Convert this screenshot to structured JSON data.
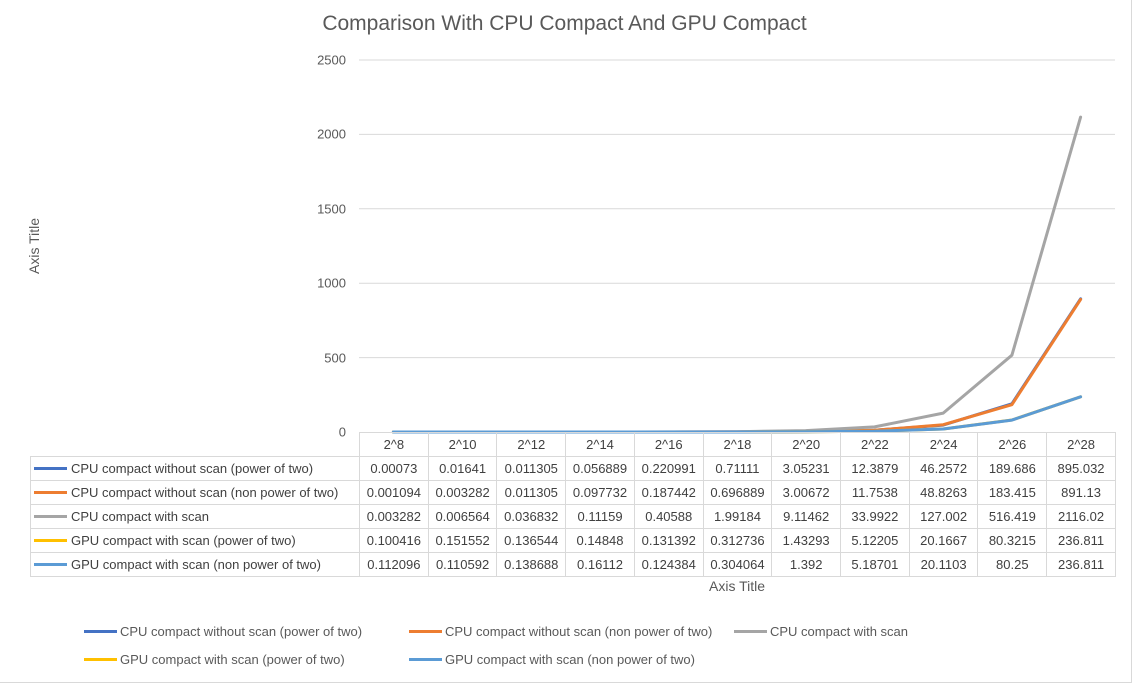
{
  "chart_data": {
    "type": "line",
    "title": "Comparison With CPU Compact And GPU Compact",
    "xlabel": "Axis Title",
    "ylabel": "Axis Title",
    "ylim": [
      0,
      2500
    ],
    "yticks": [
      "0",
      "500",
      "1000",
      "1500",
      "2000",
      "2500"
    ],
    "grid": true,
    "legend_position": "bottom",
    "data_table": true,
    "categories": [
      "2^8",
      "2^10",
      "2^12",
      "2^14",
      "2^16",
      "2^18",
      "2^20",
      "2^22",
      "2^24",
      "2^26",
      "2^28"
    ],
    "series": [
      {
        "name": "CPU compact without scan (power of two)",
        "color": "#4472c4",
        "values": [
          0.00073,
          0.01641,
          0.011305,
          0.056889,
          0.220991,
          0.71111,
          3.05231,
          12.3879,
          46.2572,
          189.686,
          895.032
        ],
        "labels": [
          "0.00073",
          "0.01641",
          "0.011305",
          "0.056889",
          "0.220991",
          "0.71111",
          "3.05231",
          "12.3879",
          "46.2572",
          "189.686",
          "895.032"
        ]
      },
      {
        "name": "CPU compact without scan (non power of two)",
        "color": "#ed7d31",
        "values": [
          0.001094,
          0.003282,
          0.011305,
          0.097732,
          0.187442,
          0.696889,
          3.00672,
          11.7538,
          48.8263,
          183.415,
          891.13
        ],
        "labels": [
          "0.001094",
          "0.003282",
          "0.011305",
          "0.097732",
          "0.187442",
          "0.696889",
          "3.00672",
          "11.7538",
          "48.8263",
          "183.415",
          "891.13"
        ]
      },
      {
        "name": "CPU compact with scan",
        "color": "#a5a5a5",
        "values": [
          0.003282,
          0.006564,
          0.036832,
          0.11159,
          0.40588,
          1.99184,
          9.11462,
          33.9922,
          127.002,
          516.419,
          2116.02
        ],
        "labels": [
          "0.003282",
          "0.006564",
          "0.036832",
          "0.11159",
          "0.40588",
          "1.99184",
          "9.11462",
          "33.9922",
          "127.002",
          "516.419",
          "2116.02"
        ]
      },
      {
        "name": "GPU compact with scan (power of two)",
        "color": "#ffc000",
        "values": [
          0.100416,
          0.151552,
          0.136544,
          0.14848,
          0.131392,
          0.312736,
          1.43293,
          5.12205,
          20.1667,
          80.3215,
          236.811
        ],
        "labels": [
          "0.100416",
          "0.151552",
          "0.136544",
          "0.14848",
          "0.131392",
          "0.312736",
          "1.43293",
          "5.12205",
          "20.1667",
          "80.3215",
          "236.811"
        ]
      },
      {
        "name": "GPU compact with scan (non power of two)",
        "color": "#5b9bd5",
        "values": [
          0.112096,
          0.110592,
          0.138688,
          0.16112,
          0.124384,
          0.304064,
          1.392,
          5.18701,
          20.1103,
          80.25,
          236.811
        ],
        "labels": [
          "0.112096",
          "0.110592",
          "0.138688",
          "0.16112",
          "0.124384",
          "0.304064",
          "1.392",
          "5.18701",
          "20.1103",
          "80.25",
          "236.811"
        ]
      }
    ]
  }
}
